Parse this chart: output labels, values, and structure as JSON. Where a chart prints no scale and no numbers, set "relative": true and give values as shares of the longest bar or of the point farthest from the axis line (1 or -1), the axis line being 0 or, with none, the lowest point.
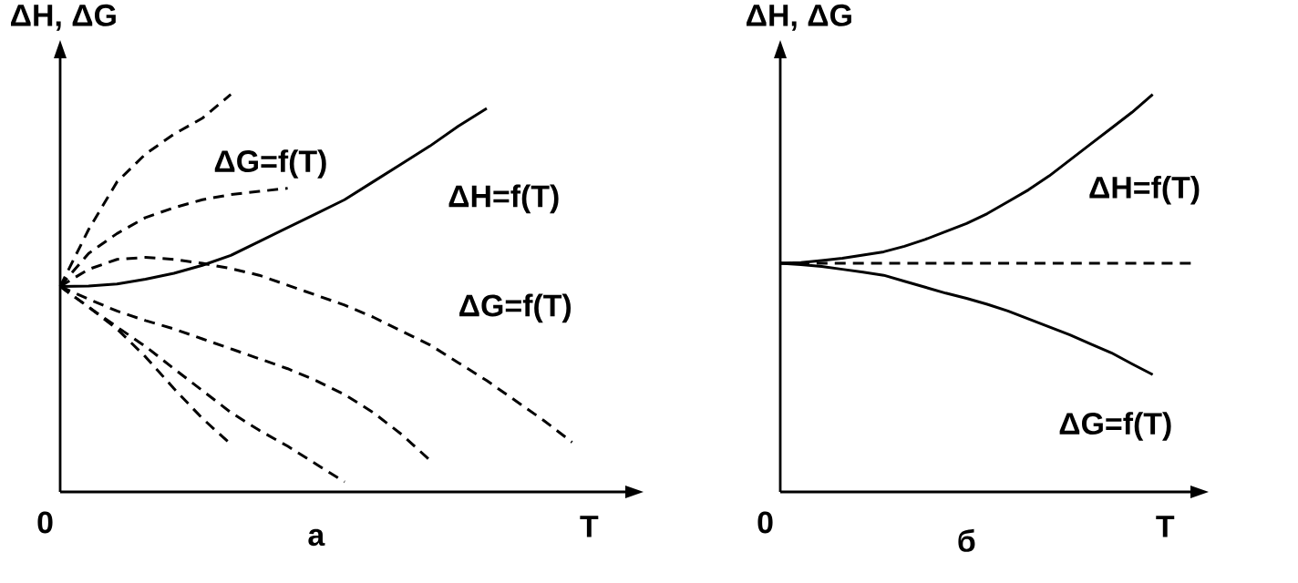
{
  "chart_data": [
    {
      "type": "line",
      "relative": true,
      "title": "а",
      "xlabel": "T",
      "ylabel": "ΔH, ΔG",
      "marker": "none",
      "categories": [
        null,
        null,
        null,
        null,
        null,
        null,
        null,
        null,
        null,
        null,
        null,
        null,
        null,
        null,
        null,
        null,
        null,
        null,
        null,
        null,
        null
      ],
      "series": [
        {
          "color": "#000000",
          "line_style": "dashed",
          "values": [
            0.517,
            0.66,
            0.78,
            0.85,
            0.9,
            0.94,
            1.0,
            null,
            null,
            null,
            null,
            null,
            null,
            null,
            null,
            null,
            null,
            null,
            null,
            null,
            null
          ]
        },
        {
          "color": "#000000",
          "line_style": "dashed",
          "values": [
            0.517,
            0.6,
            0.65,
            0.69,
            0.715,
            0.735,
            0.748,
            0.756,
            0.764,
            null,
            null,
            null,
            null,
            null,
            null,
            null,
            null,
            null,
            null,
            null,
            null
          ]
        },
        {
          "color": "#000000",
          "line_style": "solid",
          "values": [
            0.517,
            0.518,
            0.523,
            0.535,
            0.55,
            0.57,
            0.595,
            0.63,
            0.665,
            0.7,
            0.735,
            0.78,
            0.825,
            0.87,
            0.92,
            0.965,
            null,
            null,
            null,
            null,
            null
          ]
        },
        {
          "color": "#000000",
          "line_style": "dashed",
          "values": [
            0.517,
            0.56,
            0.585,
            0.59,
            0.585,
            0.575,
            0.562,
            0.545,
            0.52,
            0.495,
            0.47,
            0.44,
            0.405,
            0.37,
            0.325,
            0.28,
            0.23,
            0.18,
            0.125,
            null,
            null
          ]
        },
        {
          "color": "#000000",
          "line_style": "dashed",
          "values": [
            0.517,
            0.485,
            0.455,
            0.431,
            0.41,
            0.385,
            0.36,
            0.335,
            0.31,
            0.28,
            0.245,
            0.2,
            0.145,
            0.08,
            null,
            null,
            null,
            null,
            null,
            null,
            null
          ]
        },
        {
          "color": "#000000",
          "line_style": "dashed",
          "values": [
            0.517,
            0.465,
            0.415,
            0.366,
            0.31,
            0.255,
            0.2,
            0.155,
            0.115,
            0.07,
            0.025,
            null,
            null,
            null,
            null,
            null,
            null,
            null,
            null,
            null,
            null
          ]
        },
        {
          "color": "#000000",
          "line_style": "dashed",
          "values": [
            0.517,
            0.465,
            0.41,
            0.34,
            0.26,
            0.185,
            0.12,
            null,
            null,
            null,
            null,
            null,
            null,
            null,
            null,
            null,
            null,
            null,
            null,
            null,
            null
          ]
        }
      ],
      "annotations": [
        "ΔG=f(T)",
        "ΔH=f(T)",
        "ΔG=f(T)",
        "0"
      ]
    },
    {
      "type": "line",
      "relative": true,
      "title": "б",
      "xlabel": "T",
      "ylabel": "ΔH, ΔG",
      "marker": "none",
      "categories": [
        null,
        null,
        null,
        null,
        null,
        null,
        null,
        null,
        null,
        null,
        null,
        null,
        null,
        null,
        null,
        null,
        null,
        null,
        null,
        null,
        null
      ],
      "series": [
        {
          "color": "#000000",
          "line_style": "solid",
          "values": [
            0.575,
            0.577,
            0.582,
            0.588,
            0.596,
            0.604,
            0.618,
            0.635,
            0.655,
            0.675,
            0.7,
            0.73,
            0.76,
            0.795,
            0.835,
            0.875,
            0.915,
            0.955,
            1.0,
            null,
            null
          ]
        },
        {
          "color": "#000000",
          "line_style": "dashed",
          "values": [
            0.575,
            0.575,
            0.575,
            0.575,
            0.575,
            0.575,
            0.575,
            0.575,
            0.575,
            0.575,
            0.575,
            0.575,
            0.575,
            0.575,
            0.575,
            0.575,
            0.575,
            0.575,
            0.575,
            0.575,
            0.575
          ]
        },
        {
          "color": "#000000",
          "line_style": "solid",
          "values": [
            0.575,
            0.572,
            0.567,
            0.56,
            0.553,
            0.545,
            0.53,
            0.515,
            0.5,
            0.487,
            0.472,
            0.455,
            0.435,
            0.415,
            0.395,
            0.372,
            0.35,
            0.322,
            0.295,
            null,
            null
          ]
        }
      ],
      "annotations": [
        "ΔH=f(T)",
        "ΔG=f(T)",
        "0"
      ]
    }
  ]
}
